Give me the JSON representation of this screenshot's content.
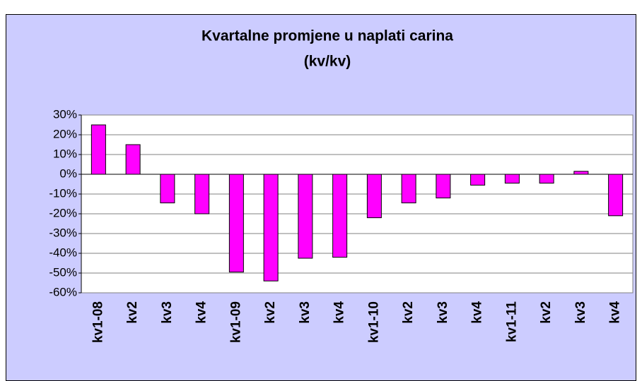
{
  "chart_data": {
    "type": "bar",
    "title": "Kvartalne promjene u naplati carina",
    "subtitle": "(kv/kv)",
    "categories": [
      "kv1-08",
      "kv2",
      "kv3",
      "kv4",
      "kv1-09",
      "kv2",
      "kv3",
      "kv4",
      "kv1-10",
      "kv2",
      "kv3",
      "kv4",
      "kv1-11",
      "kv2",
      "kv3",
      "kv4"
    ],
    "values": [
      25,
      15,
      -14.5,
      -20,
      -49.5,
      -54,
      -42.5,
      -42,
      -22,
      -14.5,
      -12,
      -5.5,
      -4.5,
      -4.5,
      1.5,
      -21
    ],
    "color": "#ff00ff",
    "ylim": [
      -60,
      30
    ],
    "yticks": [
      {
        "value": -60,
        "label": "-60%"
      },
      {
        "value": -50,
        "label": "-50%"
      },
      {
        "value": -40,
        "label": "-40%"
      },
      {
        "value": -30,
        "label": "-30%"
      },
      {
        "value": -20,
        "label": "-20%"
      },
      {
        "value": -10,
        "label": "-10%"
      },
      {
        "value": 0,
        "label": "0%"
      },
      {
        "value": 10,
        "label": "10%"
      },
      {
        "value": 20,
        "label": "20%"
      },
      {
        "value": 30,
        "label": "30%"
      }
    ],
    "grid": true
  }
}
